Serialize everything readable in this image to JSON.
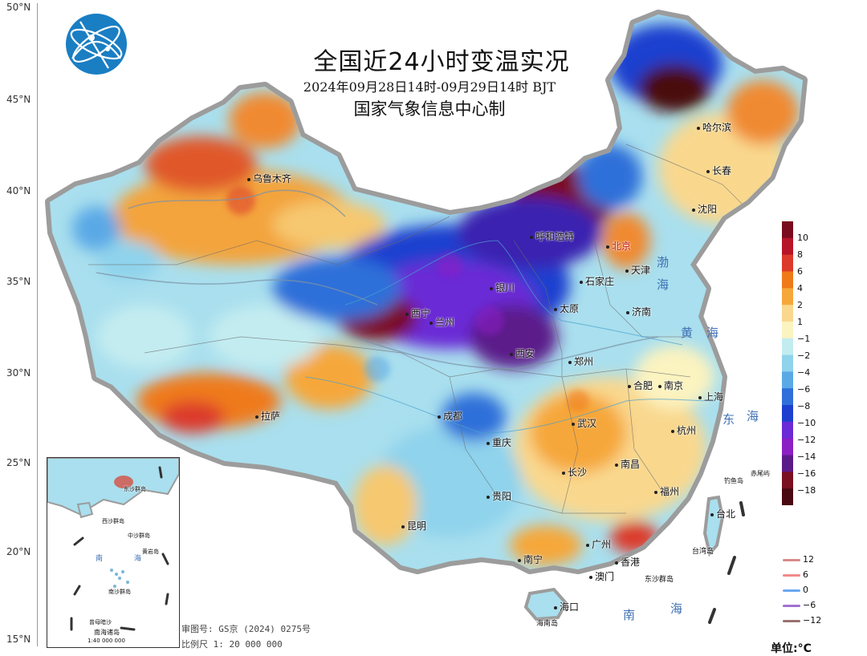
{
  "map": {
    "title": "全国近24小时变温实况",
    "subtitle": "2024年09月28日14时-09月29日14时 BJT",
    "producer": "国家气象信息中心制",
    "latitude_labels": [
      "50°N",
      "45°N",
      "40°N",
      "35°N",
      "30°N",
      "25°N",
      "20°N",
      "15°N"
    ],
    "colorbar": {
      "labels": [
        "10",
        "8",
        "6",
        "4",
        "2",
        "1",
        "−1",
        "−2",
        "−4",
        "−6",
        "−8",
        "−10",
        "−12",
        "−14",
        "−16",
        "−18"
      ],
      "colors": [
        "#7a0a1e",
        "#b81428",
        "#dc3a2a",
        "#ef7a1a",
        "#f6a73a",
        "#f9d88e",
        "#fbf3c0",
        "#c3ecf0",
        "#8fd3ec",
        "#5aa9e6",
        "#2f6fd9",
        "#1d3fcf",
        "#6a2ad6",
        "#8c1fc4",
        "#5b1a8a",
        "#7a1020",
        "#4a0810"
      ]
    },
    "contour_legend": [
      {
        "label": "12",
        "color": "#d98a8a"
      },
      {
        "label": "6",
        "color": "#f08a8a"
      },
      {
        "label": "0",
        "color": "#6aa8f0"
      },
      {
        "label": "−6",
        "color": "#a070d0"
      },
      {
        "label": "−12",
        "color": "#9a7070"
      }
    ],
    "unit_label": "单位:°C",
    "review_number": "审图号: GS京 (2024) 0275号",
    "scale_label": "比例尺 1: 20 000 000",
    "seas": [
      "渤",
      "海",
      "黄",
      "海",
      "东",
      "海",
      "南",
      "海"
    ],
    "cities": [
      {
        "name": "乌鲁木齐"
      },
      {
        "name": "哈尔滨"
      },
      {
        "name": "长春"
      },
      {
        "name": "沈阳"
      },
      {
        "name": "北京"
      },
      {
        "name": "天津"
      },
      {
        "name": "石家庄"
      },
      {
        "name": "太原"
      },
      {
        "name": "济南"
      },
      {
        "name": "西宁"
      },
      {
        "name": "兰州"
      },
      {
        "name": "银川"
      },
      {
        "name": "呼和浩特"
      },
      {
        "name": "西安"
      },
      {
        "name": "郑州"
      },
      {
        "name": "合肥"
      },
      {
        "name": "南京"
      },
      {
        "name": "上海"
      },
      {
        "name": "武汉"
      },
      {
        "name": "杭州"
      },
      {
        "name": "成都"
      },
      {
        "name": "重庆"
      },
      {
        "name": "拉萨"
      },
      {
        "name": "长沙"
      },
      {
        "name": "南昌"
      },
      {
        "name": "福州"
      },
      {
        "name": "贵阳"
      },
      {
        "name": "昆明"
      },
      {
        "name": "南宁"
      },
      {
        "name": "广州"
      },
      {
        "name": "香港"
      },
      {
        "name": "澳门"
      },
      {
        "name": "海口"
      },
      {
        "name": "台北"
      }
    ],
    "islands": [
      {
        "name": "钓鱼岛"
      },
      {
        "name": "赤尾屿"
      },
      {
        "name": "台湾岛"
      },
      {
        "name": "东沙群岛"
      },
      {
        "name": "海南岛"
      }
    ],
    "inset": {
      "title": "南海诸岛",
      "scale": "1:40 000 000",
      "labels": [
        "东沙群岛",
        "西沙群岛",
        "中沙群岛",
        "黄岩岛",
        "南沙群岛",
        "曾母暗沙",
        "南",
        "海"
      ]
    }
  }
}
